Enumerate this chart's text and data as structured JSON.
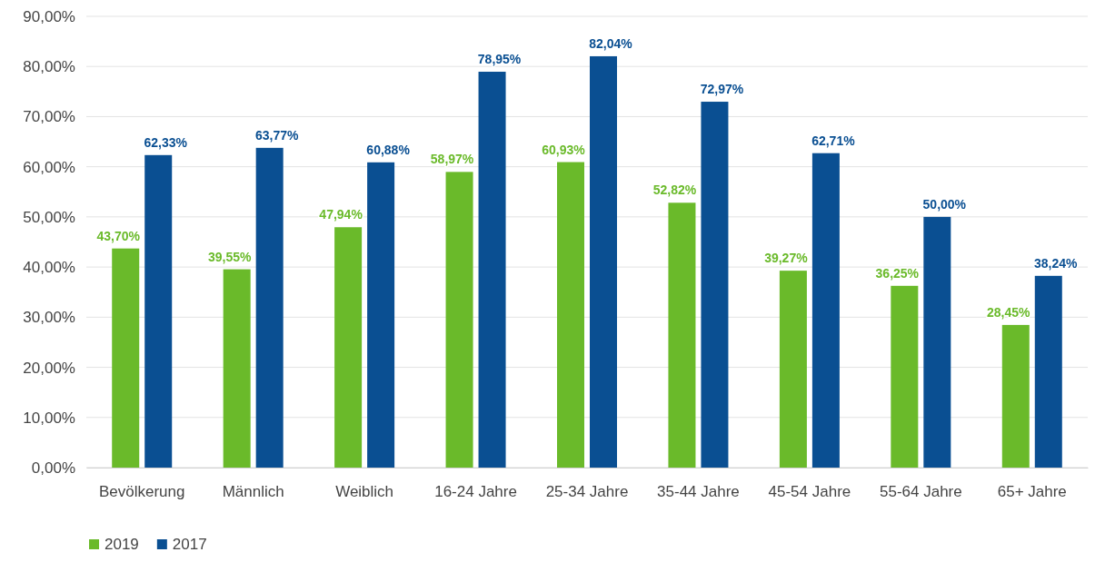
{
  "chart_data": {
    "type": "bar",
    "categories": [
      "Bevölkerung",
      "Männlich",
      "Weiblich",
      "16-24 Jahre",
      "25-34 Jahre",
      "35-44 Jahre",
      "45-54 Jahre",
      "55-64 Jahre",
      "65+ Jahre"
    ],
    "series": [
      {
        "name": "2019",
        "color": "#6aba2a",
        "values": [
          43.7,
          39.55,
          47.94,
          58.97,
          60.93,
          52.82,
          39.27,
          36.25,
          28.45
        ],
        "value_labels": [
          "43,70%",
          "39,55%",
          "47,94%",
          "58,97%",
          "60,93%",
          "52,82%",
          "39,27%",
          "36,25%",
          "28,45%"
        ]
      },
      {
        "name": "2017",
        "color": "#0a4f92",
        "values": [
          62.33,
          63.77,
          60.88,
          78.95,
          82.04,
          72.97,
          62.71,
          50.0,
          38.24
        ],
        "value_labels": [
          "62,33%",
          "63,77%",
          "60,88%",
          "78,95%",
          "82,04%",
          "72,97%",
          "62,71%",
          "50,00%",
          "38,24%"
        ]
      }
    ],
    "ylim": [
      0,
      90
    ],
    "yticks": [
      {
        "value": 0,
        "label": "0,00%"
      },
      {
        "value": 10,
        "label": "10,00%"
      },
      {
        "value": 20,
        "label": "20,00%"
      },
      {
        "value": 30,
        "label": "30,00%"
      },
      {
        "value": 40,
        "label": "40,00%"
      },
      {
        "value": 50,
        "label": "50,00%"
      },
      {
        "value": 60,
        "label": "60,00%"
      },
      {
        "value": 70,
        "label": "70,00%"
      },
      {
        "value": 80,
        "label": "80,00%"
      },
      {
        "value": 90,
        "label": "90,00%"
      }
    ],
    "grid": "y",
    "legend": "bottom left"
  }
}
